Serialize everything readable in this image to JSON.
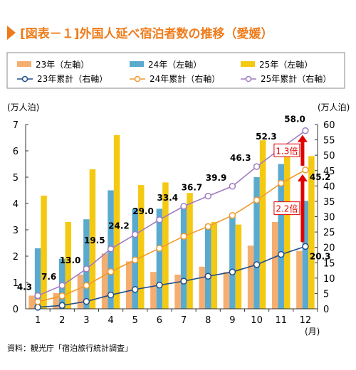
{
  "chart_data": {
    "type": "bar",
    "title": "[図表－１]外国人延べ宿泊者数の推移（愛媛）",
    "source": "資料：観光庁「宿泊旅行統計調査」",
    "categories": [
      "1",
      "2",
      "3",
      "4",
      "5",
      "6",
      "7",
      "8",
      "9",
      "10",
      "11",
      "12"
    ],
    "x_unit": "(月)",
    "y_left": {
      "label": "(万人泊)",
      "range": [
        0,
        7
      ],
      "ticks": [
        "0",
        "1",
        "2",
        "3",
        "4",
        "5",
        "6",
        "7"
      ]
    },
    "y_right": {
      "label": "(万人泊)",
      "range": [
        0,
        60
      ],
      "ticks": [
        "0",
        "5",
        "10",
        "15",
        "20",
        "25",
        "30",
        "35",
        "40",
        "45",
        "50",
        "55",
        "60"
      ]
    },
    "bar_series": [
      {
        "name": "23年（左軸）",
        "color": "#F5AE6F",
        "values": [
          0.5,
          0.6,
          1.3,
          2.1,
          1.8,
          1.4,
          1.3,
          1.6,
          1.4,
          2.4,
          3.3,
          2.2
        ]
      },
      {
        "name": "24年（左軸）",
        "color": "#5AAAD0",
        "values": [
          2.3,
          1.9,
          3.4,
          4.5,
          3.8,
          3.8,
          3.9,
          3.2,
          3.6,
          5.0,
          5.5,
          4.1
        ]
      },
      {
        "name": "25年（左軸）",
        "color": "#F4C912",
        "values": [
          4.3,
          3.3,
          5.3,
          6.6,
          4.7,
          4.8,
          4.4,
          3.3,
          3.2,
          6.4,
          6.1,
          5.8
        ]
      }
    ],
    "line_series": [
      {
        "name": "23年累計（右軸）",
        "color": "#1F4E8C",
        "values": [
          0.5,
          1.1,
          2.4,
          4.5,
          6.3,
          7.7,
          9.0,
          10.6,
          12.0,
          14.4,
          17.7,
          20.3
        ],
        "labels": {
          "11": "20.3"
        }
      },
      {
        "name": "24年累計（右軸）",
        "color": "#F29A2E",
        "values": [
          2.3,
          4.2,
          7.6,
          12.1,
          15.9,
          19.7,
          23.6,
          26.8,
          30.4,
          35.4,
          40.9,
          45.2
        ],
        "labels": {
          "11": "45.2"
        }
      },
      {
        "name": "25年累計（右軸）",
        "color": "#A07CC0",
        "values": [
          4.3,
          7.6,
          13.0,
          19.5,
          24.2,
          29.0,
          33.4,
          36.7,
          39.9,
          46.3,
          52.3,
          58.0
        ],
        "labels": {
          "0": "4.3",
          "1": "7.6",
          "2": "13.0",
          "3": "19.5",
          "4": "24.2",
          "5": "29.0",
          "6": "33.4",
          "7": "36.7",
          "8": "39.9",
          "9": "46.3",
          "10": "52.3",
          "11": "58.0"
        }
      }
    ],
    "annotations": [
      {
        "text": "1.3倍",
        "from_value": 45.2,
        "to_value": 58.0,
        "color": "#E00000"
      },
      {
        "text": "2.2倍",
        "from_value": 20.3,
        "to_value": 45.2,
        "color": "#E00000"
      }
    ],
    "legend_position": "top",
    "grid": false
  }
}
